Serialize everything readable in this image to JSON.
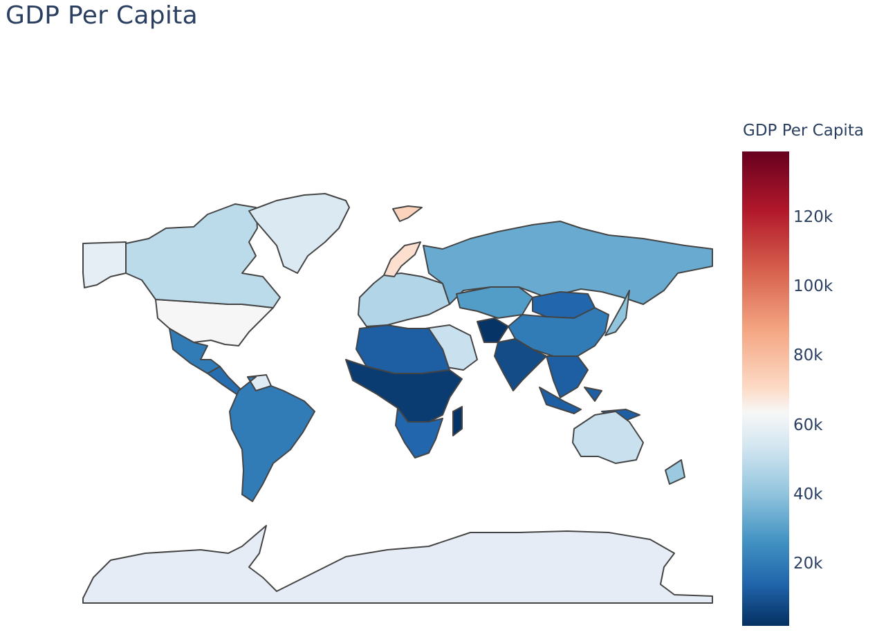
{
  "title": "GDP Per Capita",
  "colorbar": {
    "title": "GDP Per Capita",
    "ticks": [
      "120k",
      "100k",
      "80k",
      "60k",
      "40k",
      "20k"
    ],
    "tick_values": [
      120000,
      100000,
      80000,
      60000,
      40000,
      20000
    ],
    "range": [
      2000,
      139000
    ],
    "colorscale": "RdBu_r"
  },
  "colors": {
    "ocean_land_bg": "#e5ecf6",
    "border": "#444444",
    "title": "#2a3f5f"
  },
  "chart_data": {
    "type": "choropleth",
    "title": "GDP Per Capita",
    "colorbar_title": "GDP Per Capita",
    "regions": [
      {
        "name": "USA",
        "value": 70000
      },
      {
        "name": "Canada",
        "value": 52000
      },
      {
        "name": "Alaska",
        "value": 64000
      },
      {
        "name": "Greenland",
        "value": 60000
      },
      {
        "name": "Mexico",
        "value": 22000
      },
      {
        "name": "Central America",
        "value": 18000
      },
      {
        "name": "Venezuela",
        "value": 62000
      },
      {
        "name": "South America",
        "value": 22000
      },
      {
        "name": "Western Europe",
        "value": 50000
      },
      {
        "name": "Norway",
        "value": 82000
      },
      {
        "name": "Svalbard",
        "value": 86000
      },
      {
        "name": "Russia",
        "value": 36000
      },
      {
        "name": "Kazakhstan",
        "value": 32000
      },
      {
        "name": "Mongolia",
        "value": 16000
      },
      {
        "name": "China",
        "value": 22000
      },
      {
        "name": "India",
        "value": 9000
      },
      {
        "name": "Afghanistan",
        "value": 3000
      },
      {
        "name": "Southeast Asia",
        "value": 14000
      },
      {
        "name": "Arabian Peninsula",
        "value": 55000
      },
      {
        "name": "North Africa",
        "value": 14000
      },
      {
        "name": "Sub-Saharan Africa",
        "value": 5000
      },
      {
        "name": "Southern Africa",
        "value": 16000
      },
      {
        "name": "Madagascar",
        "value": 3000
      },
      {
        "name": "Australia",
        "value": 55000
      },
      {
        "name": "New Zealand",
        "value": 45000
      },
      {
        "name": "Japan",
        "value": 43000
      },
      {
        "name": "Antarctica",
        "value": null
      }
    ]
  }
}
